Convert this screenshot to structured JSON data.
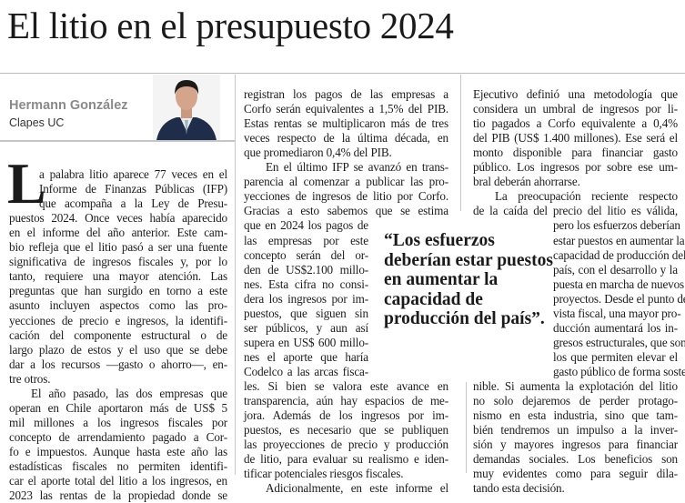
{
  "title": "El litio en el presupuesto 2024",
  "author": {
    "name": "Hermann González",
    "org": "Clapes UC"
  },
  "drop_cap": "L",
  "quote": "“Los esfuerzos deberían estar puestos en aumentar la capacidad de producción del país”.",
  "columns": [
    [
      "a palabra litio aparece 77 veces en el",
      "Informe de Finanzas Públicas (IFP)",
      "que acompaña a la Ley de Presu-",
      "puestos 2024. Once veces había aparecido",
      "en el informe del año anterior. Este cam-",
      "bio refleja que el litio pasó a ser una fuente",
      "significativa de ingresos fiscales y, por lo",
      "tanto, requiere una mayor atención. Las",
      "preguntas que han surgido en torno a este",
      "asunto incluyen aspectos como las pro-",
      "yecciones de precio e ingresos, la identifi-",
      "cación del componente estructural o de",
      "largo plazo de estos y el uso que se debe",
      "dar a los recursos —gasto o ahorro—, en-",
      "tre otros.",
      "El año pasado, las dos empresas que",
      "operan en Chile aportaron más de US$ 5",
      "mil millones a los ingresos fiscales por",
      "concepto de arrendamiento pagado a Cor-",
      "fo e impuestos. Aunque hasta este año las",
      "estadísticas fiscales no permiten identifi-",
      "car el aporte total del litio a los ingresos, en",
      "2023 las rentas de la propiedad donde se"
    ],
    [
      "registran los pagos de las empresas a",
      "Corfo serán equivalentes a 1,5% del PIB.",
      "Estas rentas se multiplicaron más de tres",
      "veces respecto de la última década, en",
      "que promediaron 0,4% del PIB.",
      "En el último IFP se avanzó en trans-",
      "parencia al comenzar a publicar las pro-",
      "yecciones de ingresos de litio por Corfo.",
      "Gracias a esto sabemos que se estima",
      "que en 2024 los pagos de",
      "las empresas por este",
      "concepto serán del or-",
      "den de US$2.100 millo-",
      "nes. Esta cifra no consi-",
      "dera los ingresos por im-",
      "puestos, que siguen sin",
      "ser públicos, y aun así",
      "supera en US$ 600 millo-",
      "nes el aporte que haría",
      "Codelco a las arcas fisca-",
      "les. Si bien se valora este avance en",
      "transparencia, aún hay espacios de me-",
      "jora. Además de los ingresos por im-",
      "puestos, es necesario que se publiquen",
      "las proyecciones de precio y producción",
      "de litio, para evaluar su realismo e iden-",
      "tificar potenciales riesgos fiscales.",
      "Adicionalmente, en este informe el"
    ],
    [
      "Ejecutivo definió una metodología que",
      "considera un umbral de ingresos por li-",
      "tio pagados a Corfo equivalente a 0,4%",
      "del PIB (US$ 1.400 millones). Ese será el",
      "monto disponible para financiar gasto",
      "público. Los ingresos por sobre ese um-",
      "bral deberán ahorrarse.",
      "La preocupación reciente respecto",
      "de la caída del precio del litio es válida,",
      "pero los esfuerzos deberían",
      "estar puestos en aumentar la",
      "capacidad de producción del",
      "país, con el desarrollo y la",
      "puesta en marcha de nuevos",
      "proyectos. Desde el punto de",
      "vista fiscal, una mayor pro-",
      "ducción aumentará los in-",
      "gresos estructurales, que son",
      "los que permiten elevar el",
      "gasto público de forma soste-",
      "nible. Si aumenta la explotación del litio",
      "no solo dejaremos de perder protago-",
      "nismo en esta industria, sino que tam-",
      "bién tendremos un impulso a la inver-",
      "sión y mayores ingresos para financiar",
      "demandas sociales. Los beneficios son",
      "muy evidentes como para seguir dila-",
      "tando esta decisión."
    ]
  ]
}
